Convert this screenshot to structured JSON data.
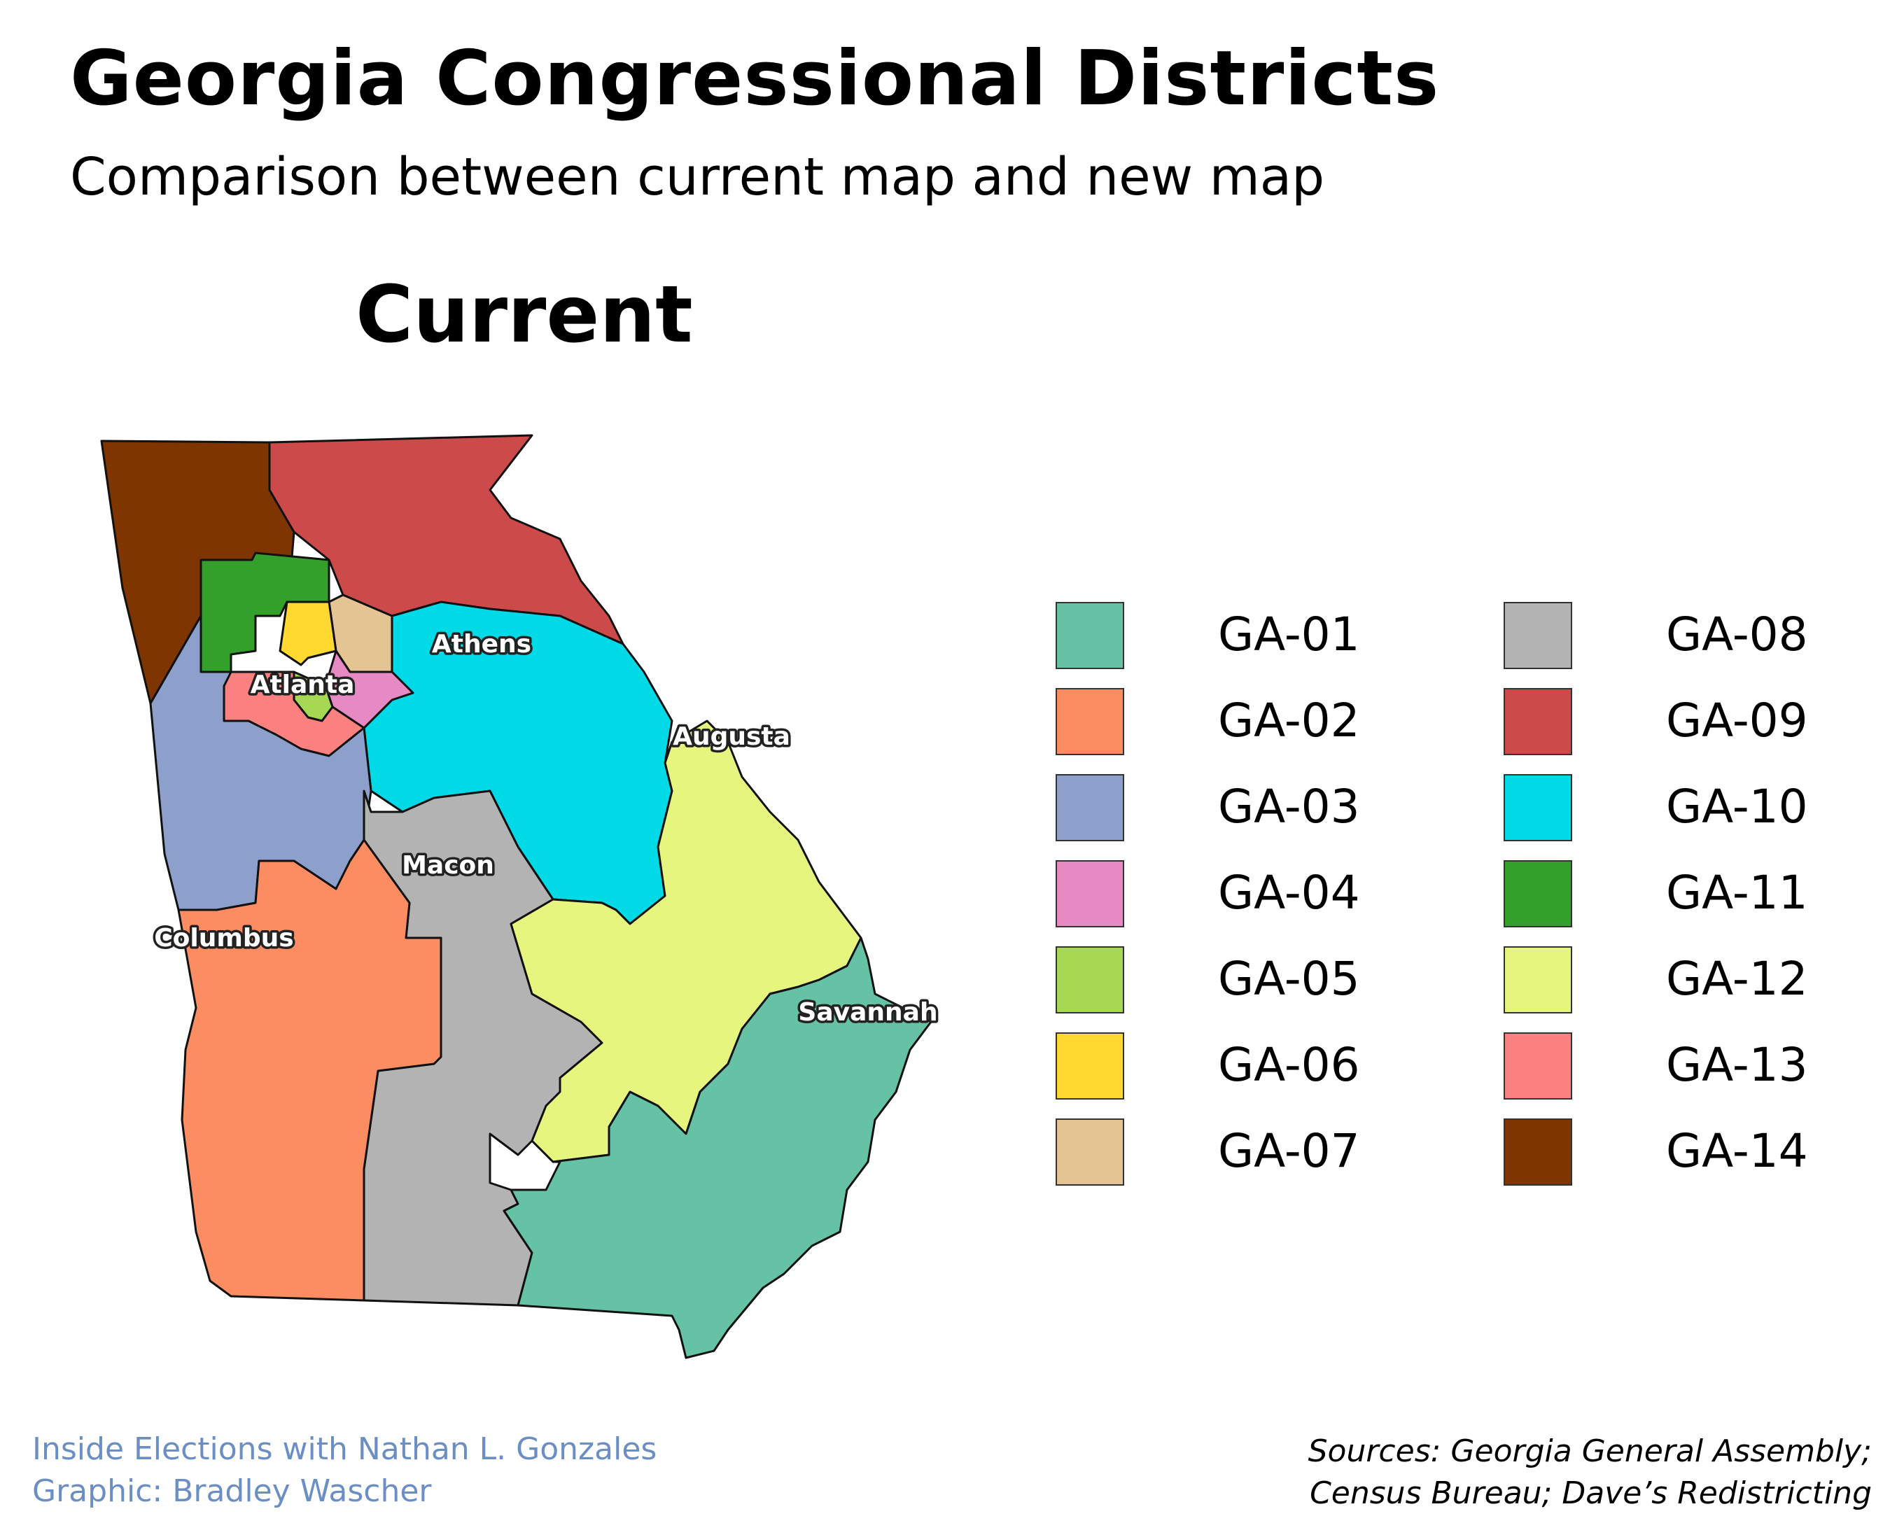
{
  "header": {
    "title": "Georgia Congressional Districts",
    "subtitle": "Comparison between current map and new map",
    "map_heading": "Current"
  },
  "cities": {
    "athens": "Athens",
    "atlanta": "Atlanta",
    "augusta": "Augusta",
    "macon": "Macon",
    "columbus": "Columbus",
    "savannah": "Savannah"
  },
  "legend": [
    {
      "label": "GA-01",
      "color": "#66c2a5"
    },
    {
      "label": "GA-02",
      "color": "#fc8d62"
    },
    {
      "label": "GA-03",
      "color": "#8da0cb"
    },
    {
      "label": "GA-04",
      "color": "#e78ac3"
    },
    {
      "label": "GA-05",
      "color": "#a6d854"
    },
    {
      "label": "GA-06",
      "color": "#ffd92f"
    },
    {
      "label": "GA-07",
      "color": "#e5c494"
    },
    {
      "label": "GA-08",
      "color": "#b3b3b3"
    },
    {
      "label": "GA-09",
      "color": "#cd4a4a"
    },
    {
      "label": "GA-10",
      "color": "#00d9e6"
    },
    {
      "label": "GA-11",
      "color": "#33a02c"
    },
    {
      "label": "GA-12",
      "color": "#e6f57e"
    },
    {
      "label": "GA-13",
      "color": "#fb8080"
    },
    {
      "label": "GA-14",
      "color": "#7f3500"
    }
  ],
  "footer": {
    "credit_line1": "Inside Elections with Nathan L. Gonzales",
    "credit_line2": "Graphic: Bradley Wascher",
    "source_line1": "Sources: Georgia General Assembly;",
    "source_line2": "Census Bureau; Dave’s Redistricting"
  }
}
